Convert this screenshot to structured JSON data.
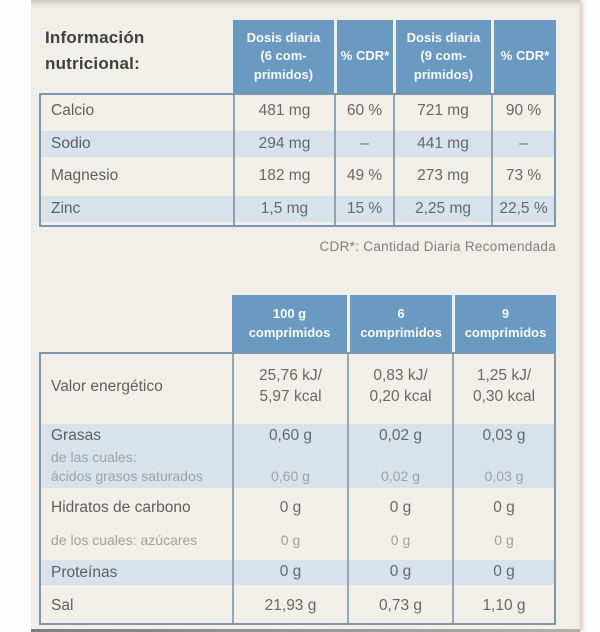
{
  "label": {
    "title": "Información\nnutricional:",
    "footnote": "CDR*: Cantidad Diaria Recomendada"
  },
  "table1": {
    "columns": [
      "Dosis diaria\n(6 com-\nprimidos)",
      "% CDR*",
      "Dosis diaria\n(9 com-\nprimidos)",
      "% CDR*"
    ],
    "rows": [
      {
        "label": "Calcio",
        "values": [
          "481 mg",
          "60 %",
          "721 mg",
          "90 %"
        ]
      },
      {
        "label": "Sodio",
        "values": [
          "294 mg",
          "–",
          "441 mg",
          "–"
        ]
      },
      {
        "label": "Magnesio",
        "values": [
          "182 mg",
          "49 %",
          "273 mg",
          "73 %"
        ]
      },
      {
        "label": "Zinc",
        "values": [
          "1,5 mg",
          "15 %",
          "2,25 mg",
          "22,5 %"
        ]
      }
    ]
  },
  "table2": {
    "columns": [
      "100 g\ncomprimidos",
      "6\ncomprimidos",
      "9\ncomprimidos"
    ],
    "rows": [
      {
        "label": "Valor energético",
        "values": [
          "25,76 kJ/\n5,97 kcal",
          "0,83 kJ/\n0,20 kcal",
          "1,25 kJ/\n0,30 kcal"
        ]
      },
      {
        "label": "Grasas",
        "sublabel": "de las cuales:\nácidos grasos saturados",
        "values": [
          "0,60 g",
          "0,02 g",
          "0,03 g"
        ],
        "subvalues": [
          "0,60 g",
          "0,02 g",
          "0,03 g"
        ]
      },
      {
        "label": "Hidratos de carbono",
        "sublabel": "de los cuales: azúcares",
        "values": [
          "0 g",
          "0 g",
          "0 g"
        ],
        "subvalues": [
          "0 g",
          "0 g",
          "0 g"
        ]
      },
      {
        "label": "Proteínas",
        "values": [
          "0 g",
          "0 g",
          "0 g"
        ]
      },
      {
        "label": "Sal",
        "values": [
          "21,93 g",
          "0,73 g",
          "1,10 g"
        ]
      }
    ]
  },
  "colors": {
    "header_blue": "#6a99c2",
    "row_band_blue": "#d7e2ea",
    "label_background": "#f2efe8",
    "border_blue_gray": "#7d98ac",
    "text_dark": "#3f4042",
    "text_body": "#67686b",
    "text_light": "#a0a1a3"
  }
}
